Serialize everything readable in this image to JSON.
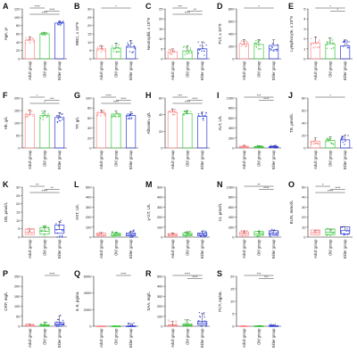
{
  "chart_data": {
    "groups": [
      "Adult group",
      "Old group",
      "Elder group"
    ],
    "colors": {
      "Adult group": "#ff8a8a",
      "Old group": "#39c93a",
      "Elder group": "#2a3ad8"
    },
    "panels": [
      {
        "letter": "A",
        "ylabel": "Age, yr",
        "yticks": [
          "0",
          "20",
          "40",
          "60",
          "80",
          "100",
          "120"
        ],
        "ylim": [
          0,
          120
        ],
        "type": "bar",
        "values": [
          45,
          60,
          86
        ],
        "spread": [
          8,
          4,
          5
        ],
        "sig": [
          {
            "a": 0,
            "b": 1,
            "label": "****"
          },
          {
            "a": 1,
            "b": 2,
            "label": "****"
          },
          {
            "a": 0,
            "b": 2,
            "label": "****"
          }
        ]
      },
      {
        "letter": "B",
        "ylabel": "WBC, x 10^9",
        "yticks": [
          "0",
          "5",
          "10",
          "15",
          "20",
          "25",
          "30"
        ],
        "ylim": [
          0,
          30
        ],
        "type": "bar",
        "values": [
          6,
          6.5,
          7
        ],
        "spread": [
          2,
          3,
          4
        ],
        "sig": [
          {
            "a": 0,
            "b": 2,
            "label": "*"
          }
        ]
      },
      {
        "letter": "C",
        "ylabel": "Neutrophil, x 10^9",
        "yticks": [
          "0",
          "5",
          "10",
          "15",
          "20",
          "25"
        ],
        "ylim": [
          0,
          25
        ],
        "type": "bar",
        "values": [
          3.5,
          4,
          5
        ],
        "spread": [
          1.5,
          2.5,
          3.5
        ],
        "sig": [
          {
            "a": 0,
            "b": 1,
            "label": "***"
          },
          {
            "a": 1,
            "b": 2,
            "label": "**"
          },
          {
            "a": 0,
            "b": 2,
            "label": "****"
          }
        ]
      },
      {
        "letter": "D",
        "ylabel": "PLT, x 10^9",
        "yticks": [
          "0",
          "200",
          "400",
          "600",
          "800"
        ],
        "ylim": [
          0,
          800
        ],
        "type": "bar",
        "values": [
          240,
          230,
          215
        ],
        "spread": [
          70,
          80,
          90
        ],
        "sig": [
          {
            "a": 0,
            "b": 2,
            "label": "*"
          }
        ]
      },
      {
        "letter": "E",
        "ylabel": "Lymphocyte, x 10^9",
        "yticks": [
          "0",
          "1",
          "2",
          "3",
          "4",
          "5"
        ],
        "ylim": [
          0,
          5
        ],
        "type": "bar",
        "values": [
          1.6,
          1.5,
          1.3
        ],
        "spread": [
          0.6,
          0.6,
          0.6
        ],
        "sig": [
          {
            "a": 0,
            "b": 2,
            "label": "*"
          },
          {
            "a": 1,
            "b": 2,
            "label": "*"
          }
        ]
      },
      {
        "letter": "F",
        "ylabel": "Hb, g/L",
        "yticks": [
          "0",
          "50",
          "100",
          "150",
          "200"
        ],
        "ylim": [
          0,
          200
        ],
        "type": "bar",
        "values": [
          135,
          130,
          122
        ],
        "spread": [
          18,
          18,
          20
        ],
        "sig": [
          {
            "a": 0,
            "b": 1,
            "label": "*"
          },
          {
            "a": 1,
            "b": 2,
            "label": "***"
          },
          {
            "a": 0,
            "b": 2,
            "label": "*"
          }
        ]
      },
      {
        "letter": "G",
        "ylabel": "TP, g/L",
        "yticks": [
          "0",
          "20",
          "40",
          "60",
          "80",
          "100"
        ],
        "ylim": [
          0,
          100
        ],
        "type": "bar",
        "values": [
          70,
          68,
          65
        ],
        "spread": [
          6,
          6,
          7
        ],
        "sig": [
          {
            "a": 0,
            "b": 1,
            "label": "****"
          },
          {
            "a": 1,
            "b": 2,
            "label": "****"
          },
          {
            "a": 0,
            "b": 2,
            "label": "****"
          }
        ]
      },
      {
        "letter": "H",
        "ylabel": "Albumin, g/L",
        "yticks": [
          "0",
          "20",
          "40",
          "60"
        ],
        "ylim": [
          0,
          60
        ],
        "type": "bar",
        "values": [
          43,
          41,
          38
        ],
        "spread": [
          4,
          4,
          5
        ],
        "sig": [
          {
            "a": 0,
            "b": 1,
            "label": "***"
          },
          {
            "a": 1,
            "b": 2,
            "label": "****"
          },
          {
            "a": 0,
            "b": 2,
            "label": "****"
          }
        ]
      },
      {
        "letter": "I",
        "ylabel": "ALT, U/L",
        "yticks": [
          "0",
          "200",
          "400",
          "600",
          "800",
          "1000"
        ],
        "ylim": [
          0,
          1000
        ],
        "type": "box",
        "values": [
          22,
          20,
          18
        ],
        "spread": [
          30,
          25,
          28
        ],
        "sig": [
          {
            "a": 0,
            "b": 2,
            "label": "***"
          },
          {
            "a": 1,
            "b": 2,
            "label": "****"
          }
        ]
      },
      {
        "letter": "J",
        "ylabel": "TB, μmol/L",
        "yticks": [
          "0",
          "20",
          "40",
          "60",
          "80"
        ],
        "ylim": [
          0,
          80
        ],
        "type": "bar",
        "values": [
          11,
          12,
          13
        ],
        "spread": [
          5,
          6,
          8
        ],
        "sig": [
          {
            "a": 0,
            "b": 2,
            "label": "*"
          }
        ]
      },
      {
        "letter": "K",
        "ylabel": "DB, μmol/L",
        "yticks": [
          "0",
          "5",
          "10",
          "15",
          "20",
          "25",
          "30"
        ],
        "ylim": [
          0,
          30
        ],
        "type": "box",
        "values": [
          3,
          3.5,
          4.5
        ],
        "spread": [
          2,
          3,
          5
        ],
        "sig": [
          {
            "a": 0,
            "b": 1,
            "label": "**"
          },
          {
            "a": 1,
            "b": 2,
            "label": "**"
          },
          {
            "a": 0,
            "b": 2,
            "label": "****"
          }
        ]
      },
      {
        "letter": "L",
        "ylabel": "AST, U/L",
        "yticks": [
          "0",
          "100",
          "200",
          "300",
          "400",
          "500"
        ],
        "ylim": [
          0,
          500
        ],
        "type": "box",
        "values": [
          25,
          24,
          26
        ],
        "spread": [
          20,
          25,
          35
        ],
        "sig": []
      },
      {
        "letter": "M",
        "ylabel": "γ-GT, U/L",
        "yticks": [
          "0",
          "100",
          "200",
          "300",
          "400",
          "500"
        ],
        "ylim": [
          0,
          500
        ],
        "type": "box",
        "values": [
          22,
          24,
          26
        ],
        "spread": [
          20,
          30,
          35
        ],
        "sig": []
      },
      {
        "letter": "N",
        "ylabel": "Cr, μmol/L",
        "yticks": [
          "0",
          "200",
          "400",
          "600",
          "800",
          "1000"
        ],
        "ylim": [
          0,
          1000
        ],
        "type": "box",
        "values": [
          65,
          70,
          80
        ],
        "spread": [
          60,
          50,
          60
        ],
        "sig": [
          {
            "a": 0,
            "b": 2,
            "label": "**"
          },
          {
            "a": 1,
            "b": 2,
            "label": "****"
          }
        ]
      },
      {
        "letter": "O",
        "ylabel": "BUN, mmol/L",
        "yticks": [
          "0",
          "10",
          "20",
          "30",
          "40",
          "50"
        ],
        "ylim": [
          0,
          50
        ],
        "type": "box",
        "values": [
          4.5,
          5,
          6.5
        ],
        "spread": [
          2,
          3,
          4
        ],
        "sig": [
          {
            "a": 0,
            "b": 1,
            "label": "*"
          },
          {
            "a": 1,
            "b": 2,
            "label": "****"
          },
          {
            "a": 0,
            "b": 2,
            "label": "****"
          }
        ]
      },
      {
        "letter": "P",
        "ylabel": "CRP, mg/L",
        "yticks": [
          "0",
          "50",
          "100",
          "150",
          "200",
          "250"
        ],
        "ylim": [
          0,
          250
        ],
        "type": "box",
        "values": [
          3,
          5,
          12
        ],
        "spread": [
          8,
          15,
          40
        ],
        "sig": [
          {
            "a": 1,
            "b": 2,
            "label": "****"
          }
        ]
      },
      {
        "letter": "Q",
        "ylabel": "IL-6, pg/mL",
        "yticks": [
          "0",
          "2000",
          "4000",
          "6000"
        ],
        "ylim": [
          0,
          6000
        ],
        "type": "box",
        "values": [
          5,
          8,
          20
        ],
        "spread": [
          20,
          40,
          300
        ],
        "sig": [
          {
            "a": 1,
            "b": 2,
            "label": "****"
          }
        ]
      },
      {
        "letter": "R",
        "ylabel": "SAA, mg/L",
        "yticks": [
          "0",
          "100",
          "200",
          "300",
          "400",
          "500"
        ],
        "ylim": [
          0,
          500
        ],
        "type": "box",
        "values": [
          10,
          15,
          30
        ],
        "spread": [
          40,
          50,
          100
        ],
        "sig": [
          {
            "a": 0,
            "b": 2,
            "label": "****"
          },
          {
            "a": 1,
            "b": 2,
            "label": "****"
          }
        ]
      },
      {
        "letter": "S",
        "ylabel": "PCT, ng/mL",
        "yticks": [
          "0",
          "5",
          "10",
          "15",
          "20"
        ],
        "ylim": [
          0,
          20
        ],
        "type": "box",
        "values": [
          0.05,
          0.06,
          0.1
        ],
        "spread": [
          0.1,
          0.2,
          0.5
        ],
        "sig": [
          {
            "a": 0,
            "b": 2,
            "label": "***"
          },
          {
            "a": 1,
            "b": 2,
            "label": "***"
          }
        ]
      }
    ]
  }
}
